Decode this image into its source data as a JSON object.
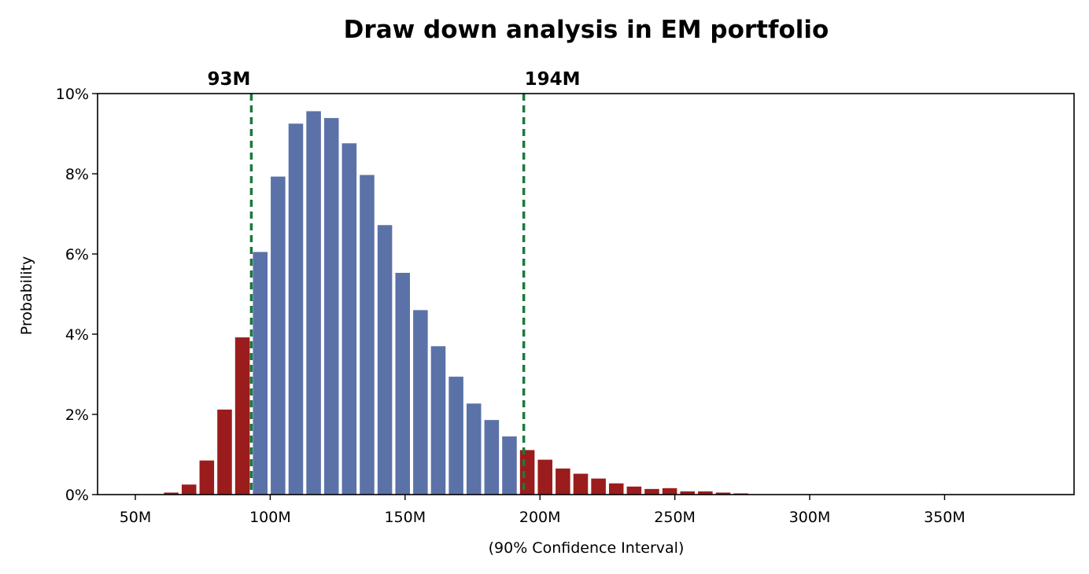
{
  "chart_data": {
    "type": "bar",
    "title": "Draw down analysis in EM portfolio",
    "xlabel": "(90% Confidence Interval)",
    "ylabel": "Probability",
    "xlim": [
      36,
      398
    ],
    "ylim": [
      0,
      10
    ],
    "x_ticks": [
      {
        "value": 50,
        "label": "50M"
      },
      {
        "value": 100,
        "label": "100M"
      },
      {
        "value": 150,
        "label": "150M"
      },
      {
        "value": 200,
        "label": "200M"
      },
      {
        "value": 250,
        "label": "250M"
      },
      {
        "value": 300,
        "label": "300M"
      },
      {
        "value": 350,
        "label": "350M"
      }
    ],
    "y_ticks": [
      {
        "value": 0,
        "label": "0%"
      },
      {
        "value": 2,
        "label": "2%"
      },
      {
        "value": 4,
        "label": "4%"
      },
      {
        "value": 6,
        "label": "6%"
      },
      {
        "value": 8,
        "label": "8%"
      },
      {
        "value": 10,
        "label": "10%"
      }
    ],
    "grid": false,
    "bin_width": 6.6,
    "colors": {
      "inside": "#5b72a8",
      "outside": "#9b1c1c",
      "ci_line": "#1a7a3c"
    },
    "confidence_interval": {
      "lower": {
        "value": 93,
        "label": "93M"
      },
      "upper": {
        "value": 194,
        "label": "194M"
      }
    },
    "bars": [
      {
        "x": 63.3,
        "value": 0.05,
        "region": "outside"
      },
      {
        "x": 69.9,
        "value": 0.25,
        "region": "outside"
      },
      {
        "x": 76.5,
        "value": 0.85,
        "region": "outside"
      },
      {
        "x": 83.1,
        "value": 2.12,
        "region": "outside"
      },
      {
        "x": 89.7,
        "value": 3.92,
        "region": "outside"
      },
      {
        "x": 96.3,
        "value": 6.05,
        "region": "inside"
      },
      {
        "x": 102.9,
        "value": 7.93,
        "region": "inside"
      },
      {
        "x": 109.5,
        "value": 9.25,
        "region": "inside"
      },
      {
        "x": 116.1,
        "value": 9.56,
        "region": "inside"
      },
      {
        "x": 122.7,
        "value": 9.39,
        "region": "inside"
      },
      {
        "x": 129.3,
        "value": 8.76,
        "region": "inside"
      },
      {
        "x": 135.9,
        "value": 7.97,
        "region": "inside"
      },
      {
        "x": 142.5,
        "value": 6.72,
        "region": "inside"
      },
      {
        "x": 149.1,
        "value": 5.53,
        "region": "inside"
      },
      {
        "x": 155.7,
        "value": 4.6,
        "region": "inside"
      },
      {
        "x": 162.3,
        "value": 3.7,
        "region": "inside"
      },
      {
        "x": 168.9,
        "value": 2.94,
        "region": "inside"
      },
      {
        "x": 175.5,
        "value": 2.27,
        "region": "inside"
      },
      {
        "x": 182.1,
        "value": 1.86,
        "region": "inside"
      },
      {
        "x": 188.7,
        "value": 1.45,
        "region": "inside"
      },
      {
        "x": 195.3,
        "value": 1.11,
        "region": "outside"
      },
      {
        "x": 201.9,
        "value": 0.87,
        "region": "outside"
      },
      {
        "x": 208.5,
        "value": 0.65,
        "region": "outside"
      },
      {
        "x": 215.1,
        "value": 0.52,
        "region": "outside"
      },
      {
        "x": 221.7,
        "value": 0.4,
        "region": "outside"
      },
      {
        "x": 228.3,
        "value": 0.28,
        "region": "outside"
      },
      {
        "x": 234.9,
        "value": 0.2,
        "region": "outside"
      },
      {
        "x": 241.5,
        "value": 0.14,
        "region": "outside"
      },
      {
        "x": 248.1,
        "value": 0.16,
        "region": "outside"
      },
      {
        "x": 254.7,
        "value": 0.08,
        "region": "outside"
      },
      {
        "x": 261.3,
        "value": 0.08,
        "region": "outside"
      },
      {
        "x": 267.9,
        "value": 0.05,
        "region": "outside"
      },
      {
        "x": 274.5,
        "value": 0.03,
        "region": "outside"
      }
    ]
  }
}
